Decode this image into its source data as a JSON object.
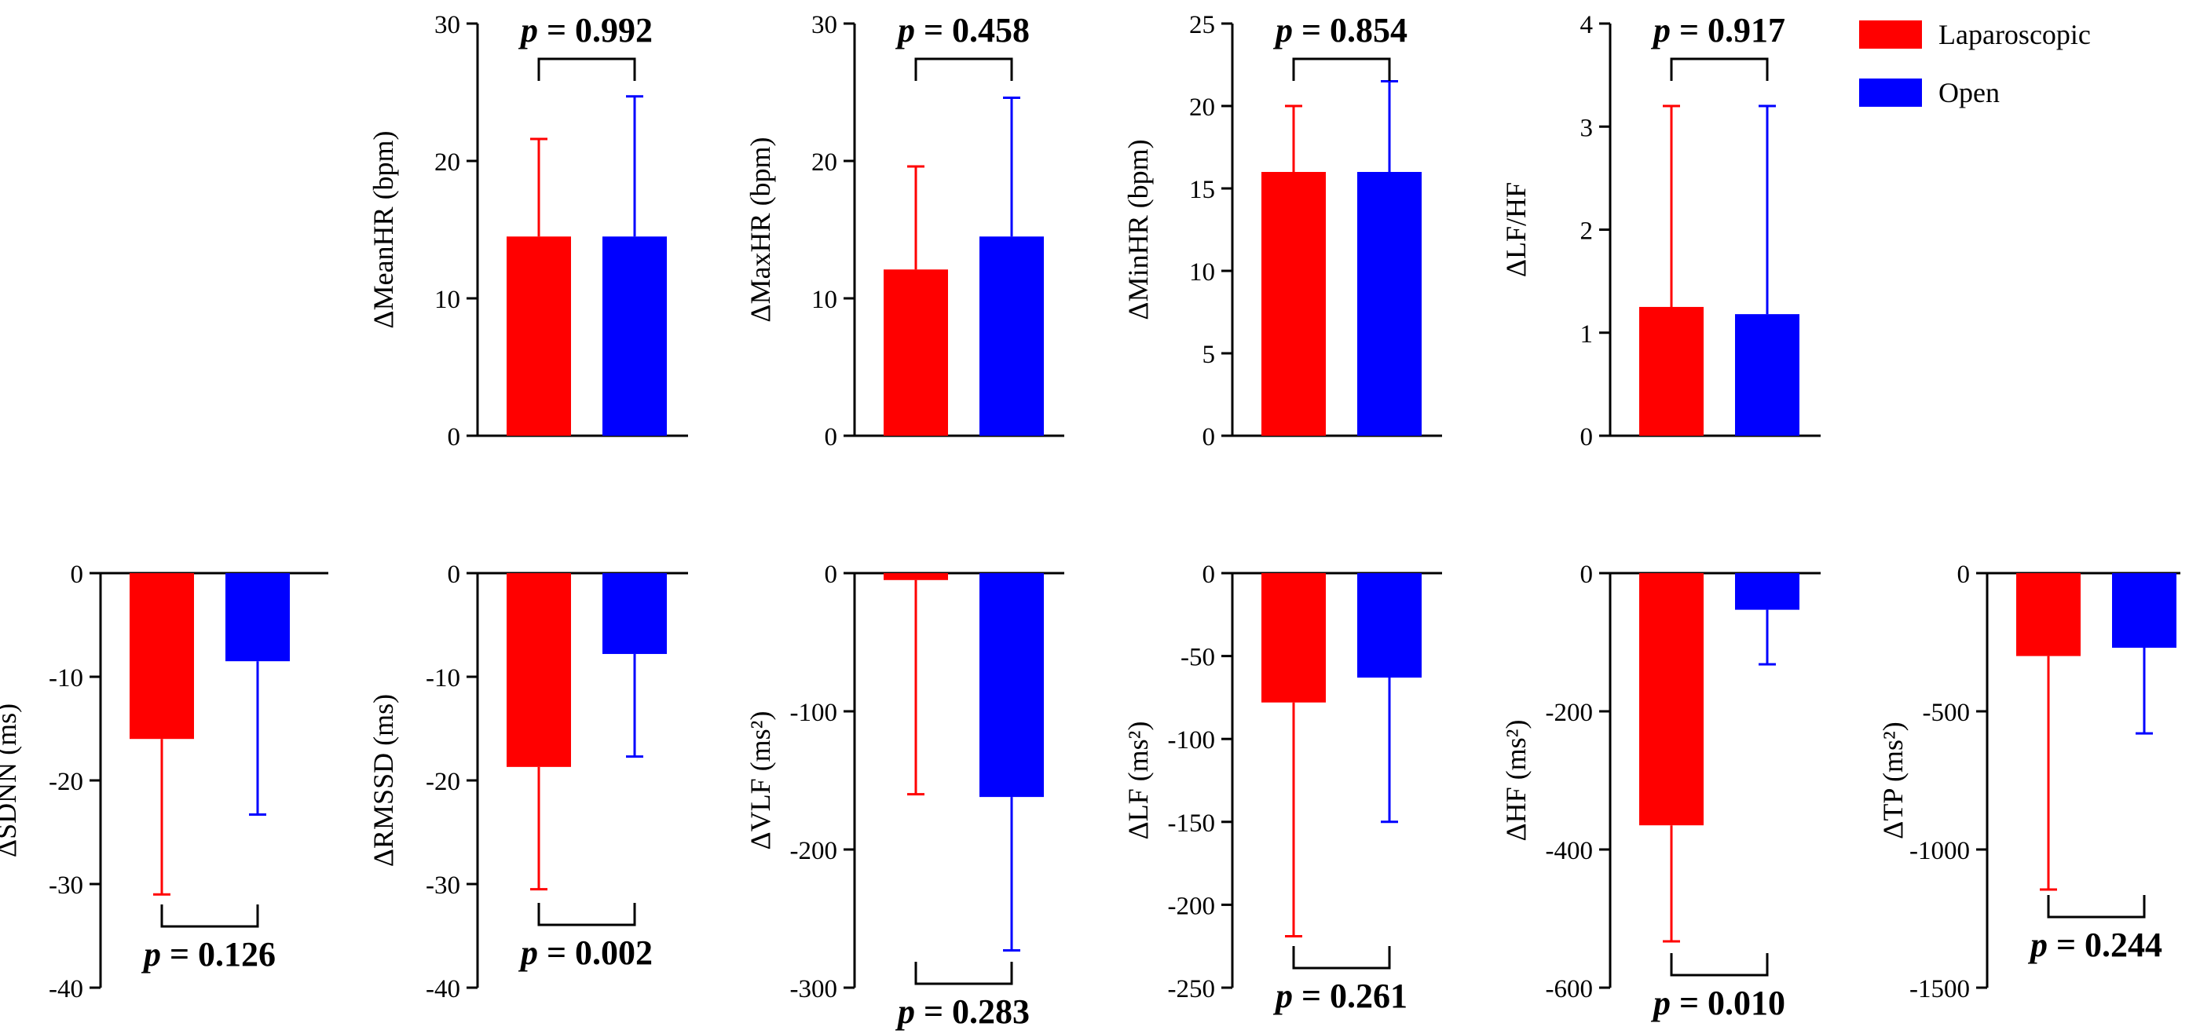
{
  "legend": [
    {
      "label": "Laparoscopic",
      "color": "#ff0000"
    },
    {
      "label": "Open",
      "color": "#0000ff"
    }
  ],
  "chart_data": [
    {
      "type": "bar",
      "ylabel": "ΔMeanHR (bpm)",
      "ylim": [
        0,
        30
      ],
      "yticks": [
        "0",
        "10",
        "20",
        "30"
      ],
      "tickvals": [
        0,
        10,
        20,
        30
      ],
      "series": [
        {
          "name": "Laparoscopic",
          "value": 14.5,
          "error": 7.1
        },
        {
          "name": "Open",
          "value": 14.5,
          "error": 10.2
        }
      ],
      "p_prefix": "p",
      "p_value": "= 0.992",
      "bracket": "top"
    },
    {
      "type": "bar",
      "ylabel": "ΔMaxHR (bpm)",
      "ylim": [
        0,
        30
      ],
      "yticks": [
        "0",
        "10",
        "20",
        "30"
      ],
      "tickvals": [
        0,
        10,
        20,
        30
      ],
      "series": [
        {
          "name": "Laparoscopic",
          "value": 12.1,
          "error": 7.5
        },
        {
          "name": "Open",
          "value": 14.5,
          "error": 10.1
        }
      ],
      "p_prefix": "p",
      "p_value": "= 0.458",
      "bracket": "top"
    },
    {
      "type": "bar",
      "ylabel": "ΔMinHR (bpm)",
      "ylim": [
        0,
        25
      ],
      "yticks": [
        "0",
        "5",
        "10",
        "15",
        "20",
        "25"
      ],
      "tickvals": [
        0,
        5,
        10,
        15,
        20,
        25
      ],
      "series": [
        {
          "name": "Laparoscopic",
          "value": 16.0,
          "error": 4.0
        },
        {
          "name": "Open",
          "value": 16.0,
          "error": 5.5
        }
      ],
      "p_prefix": "p",
      "p_value": "= 0.854",
      "bracket": "top"
    },
    {
      "type": "bar",
      "ylabel": "ΔLF/HF",
      "ylim": [
        0,
        4
      ],
      "yticks": [
        "0",
        "1",
        "2",
        "3",
        "4"
      ],
      "tickvals": [
        0,
        1,
        2,
        3,
        4
      ],
      "series": [
        {
          "name": "Laparoscopic",
          "value": 1.25,
          "error": 1.95
        },
        {
          "name": "Open",
          "value": 1.18,
          "error": 2.02
        }
      ],
      "p_prefix": "p",
      "p_value": "= 0.917",
      "bracket": "top"
    },
    {
      "type": "bar",
      "ylabel": "ΔSDNN (ms)",
      "ylim": [
        -40,
        0
      ],
      "yticks": [
        "0",
        "-10",
        "-20",
        "-30",
        "-40"
      ],
      "tickvals": [
        0,
        -10,
        -20,
        -30,
        -40
      ],
      "series": [
        {
          "name": "Laparoscopic",
          "value": -16.0,
          "error": 15.0
        },
        {
          "name": "Open",
          "value": -8.5,
          "error": 14.8
        }
      ],
      "p_prefix": "p",
      "p_value": "= 0.126",
      "bracket": "bottom"
    },
    {
      "type": "bar",
      "ylabel": "ΔRMSSD (ms)",
      "ylim": [
        -40,
        0
      ],
      "yticks": [
        "0",
        "-10",
        "-20",
        "-30",
        "-40"
      ],
      "tickvals": [
        0,
        -10,
        -20,
        -30,
        -40
      ],
      "series": [
        {
          "name": "Laparoscopic",
          "value": -18.7,
          "error": 11.8
        },
        {
          "name": "Open",
          "value": -7.8,
          "error": 9.9
        }
      ],
      "p_prefix": "p",
      "p_value": "= 0.002",
      "bracket": "bottom"
    },
    {
      "type": "bar",
      "ylabel": "ΔVLF (ms²)",
      "ylim": [
        -300,
        0
      ],
      "yticks": [
        "0",
        "-100",
        "-200",
        "-300"
      ],
      "tickvals": [
        0,
        -100,
        -200,
        -300
      ],
      "series": [
        {
          "name": "Laparoscopic",
          "value": -5,
          "error": 155
        },
        {
          "name": "Open",
          "value": -162,
          "error": 111
        }
      ],
      "p_prefix": "p",
      "p_value": "= 0.283",
      "bracket": "bottom"
    },
    {
      "type": "bar",
      "ylabel": "ΔLF (ms²)",
      "ylim": [
        -250,
        0
      ],
      "yticks": [
        "0",
        "-50",
        "-100",
        "-150",
        "-200",
        "-250"
      ],
      "tickvals": [
        0,
        -50,
        -100,
        -150,
        -200,
        -250
      ],
      "series": [
        {
          "name": "Laparoscopic",
          "value": -78,
          "error": 141
        },
        {
          "name": "Open",
          "value": -63,
          "error": 87
        }
      ],
      "p_prefix": "p",
      "p_value": "= 0.261",
      "bracket": "bottom"
    },
    {
      "type": "bar",
      "ylabel": "ΔHF (ms²)",
      "ylim": [
        -600,
        0
      ],
      "yticks": [
        "0",
        "-200",
        "-400",
        "-600"
      ],
      "tickvals": [
        0,
        -200,
        -400,
        -600
      ],
      "series": [
        {
          "name": "Laparoscopic",
          "value": -365,
          "error": 168
        },
        {
          "name": "Open",
          "value": -53,
          "error": 79
        }
      ],
      "p_prefix": "p",
      "p_value": "= 0.010",
      "bracket": "bottom"
    },
    {
      "type": "bar",
      "ylabel": "ΔTP (ms²)",
      "ylim": [
        -1500,
        0
      ],
      "yticks": [
        "0",
        "-500",
        "-1000",
        "-1500"
      ],
      "tickvals": [
        0,
        -500,
        -1000,
        -1500
      ],
      "series": [
        {
          "name": "Laparoscopic",
          "value": -300,
          "error": 845
        },
        {
          "name": "Open",
          "value": -270,
          "error": 310
        }
      ],
      "p_prefix": "p",
      "p_value": "= 0.244",
      "bracket": "bottom"
    }
  ]
}
